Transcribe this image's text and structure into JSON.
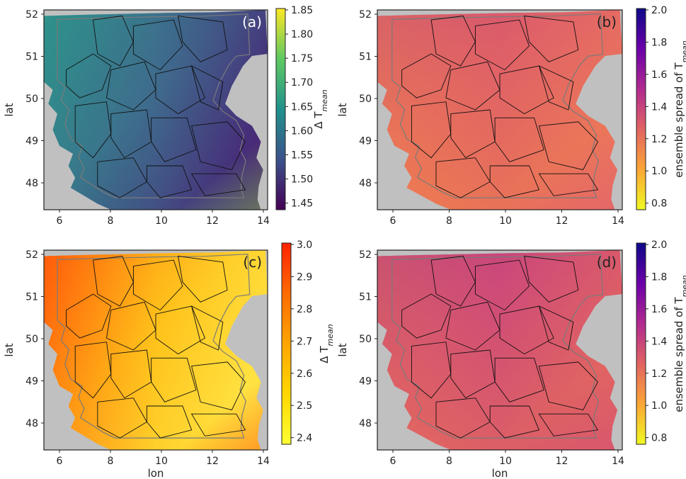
{
  "panels": [
    {
      "id": "a",
      "label": "(a)",
      "ylabel": "lat",
      "xlabel": "",
      "xticks": [
        "6",
        "8",
        "10",
        "12",
        "14"
      ],
      "yticks": [
        "52",
        "51",
        "50",
        "49",
        "48"
      ],
      "colorbar": {
        "ticks": [
          "1.85",
          "1.80",
          "1.75",
          "1.70",
          "1.65",
          "1.60",
          "1.55",
          "1.50",
          "1.45"
        ],
        "label_main": "Δ T",
        "label_sub": "mean",
        "cmap": [
          "#440154",
          "#3b528b",
          "#21918c",
          "#5ec962",
          "#fde725"
        ]
      }
    },
    {
      "id": "b",
      "label": "(b)",
      "ylabel": "lat",
      "xlabel": "",
      "xticks": [
        "6",
        "8",
        "10",
        "12",
        "14"
      ],
      "yticks": [
        "52",
        "51",
        "50",
        "49",
        "48"
      ],
      "colorbar": {
        "ticks": [
          "2.0",
          "1.8",
          "1.6",
          "1.4",
          "1.2",
          "1.0",
          "0.8"
        ],
        "label_main": "ensemble spread of T",
        "label_sub": "mean",
        "cmap": [
          "#f0f921",
          "#fca636",
          "#e16462",
          "#b12a90",
          "#6a00a8",
          "#0d0887"
        ]
      }
    },
    {
      "id": "c",
      "label": "(c)",
      "ylabel": "lat",
      "xlabel": "lon",
      "xticks": [
        "6",
        "8",
        "10",
        "12",
        "14"
      ],
      "yticks": [
        "52",
        "51",
        "50",
        "49",
        "48"
      ],
      "colorbar": {
        "ticks": [
          "3.0",
          "2.9",
          "2.8",
          "2.7",
          "2.6",
          "2.5",
          "2.4"
        ],
        "label_main": "Δ T",
        "label_sub": "mean",
        "cmap": [
          "#ffff33",
          "#ffd700",
          "#ffa500",
          "#ff6a00",
          "#ff2200"
        ]
      }
    },
    {
      "id": "d",
      "label": "(d)",
      "ylabel": "lat",
      "xlabel": "lon",
      "xticks": [
        "6",
        "8",
        "10",
        "12",
        "14"
      ],
      "yticks": [
        "52",
        "51",
        "50",
        "49",
        "48"
      ],
      "colorbar": {
        "ticks": [
          "2.0",
          "1.8",
          "1.6",
          "1.4",
          "1.2",
          "1.0",
          "0.8"
        ],
        "label_main": "ensemble spread of T",
        "label_sub": "mean",
        "cmap": [
          "#f0f921",
          "#fca636",
          "#e16462",
          "#b12a90",
          "#6a00a8",
          "#0d0887"
        ]
      }
    }
  ],
  "map_fills": {
    "a": {
      "main": "#3f6b8d",
      "west": "#2d938a",
      "east": "#482576",
      "south": "#95d840"
    },
    "b": {
      "main": "#de5f68",
      "west": "#f58a45",
      "east": "#e4676a",
      "north": "#b4318f"
    },
    "c": {
      "main": "#ffc21a",
      "west": "#ff5a0a",
      "east": "#ffe545",
      "south": "#ff3a00"
    },
    "d": {
      "main": "#ce4b78",
      "west": "#ec7652",
      "east": "#d9576d",
      "north": "#9f2596"
    }
  },
  "outside_color": "#c0c0c0"
}
